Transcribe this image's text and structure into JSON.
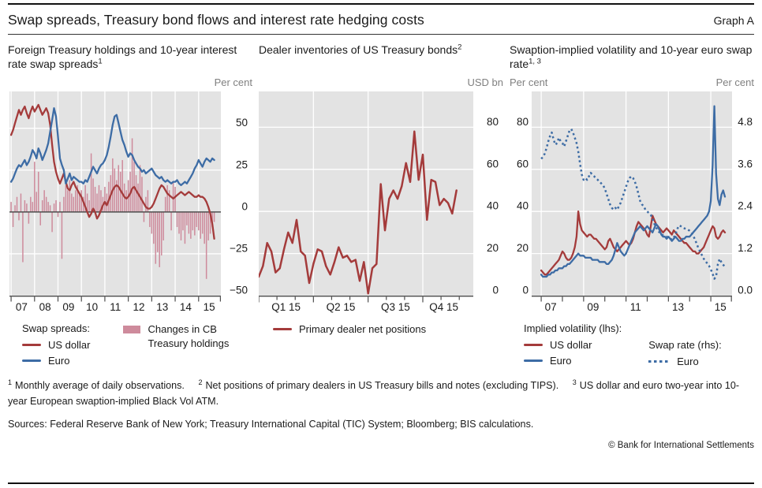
{
  "header": {
    "title": "Swap spreads, Treasury bond flows and interest rate hedging costs",
    "graph_label": "Graph A"
  },
  "colors": {
    "red": "#A43B3B",
    "blue": "#3D6CA5",
    "pink": "#CE8B9C",
    "plot_bg": "#E3E3E3",
    "grid": "#FFFFFF",
    "axis": "#4D4D4D",
    "text": "#1A1A1A",
    "muted": "#808080"
  },
  "panels": [
    {
      "title": "Foreign Treasury holdings and 10-year interest rate swap spreads",
      "title_sup": "1",
      "unit_left": "",
      "unit_right": "Per cent",
      "legend": {
        "header": "Swap spreads:",
        "items": [
          {
            "label": "US dollar"
          },
          {
            "label": "Euro"
          }
        ],
        "aside": {
          "label": "Changes in CB Treasury holdings"
        }
      }
    },
    {
      "title": "Dealer inventories of US Treasury bonds",
      "title_sup": "2",
      "unit_left": "",
      "unit_right": "USD bn",
      "legend": {
        "items": [
          {
            "label": "Primary dealer net positions"
          }
        ]
      }
    },
    {
      "title": "Swaption-implied volatility and 10-year euro swap rate",
      "title_sup": "1, 3",
      "unit_left": "Per cent",
      "unit_right": "Per cent",
      "legend": {
        "header": "Implied volatility (lhs):",
        "items": [
          {
            "label": "US dollar"
          },
          {
            "label": "Euro"
          }
        ],
        "aside_header": "Swap rate (rhs):",
        "aside": {
          "label": "Euro"
        }
      }
    }
  ],
  "chart_data": [
    {
      "type": "line+bar",
      "title": "Foreign Treasury holdings and 10-year interest rate swap spreads",
      "ylabel_right_unit": "Per cent",
      "ylim": [
        -50,
        72
      ],
      "ygrid": [
        -25,
        0,
        25,
        50
      ],
      "zero_line": 0,
      "ylabels_right": [
        {
          "v": 50,
          "t": "50"
        },
        {
          "v": 25,
          "t": "25"
        },
        {
          "v": 0,
          "t": "0"
        },
        {
          "v": -25,
          "t": "−25"
        },
        {
          "v": -50,
          "t": "−50"
        }
      ],
      "xlim": [
        2006.93,
        2015.95
      ],
      "xgrid": [
        2007,
        2008,
        2009,
        2010,
        2011,
        2012,
        2013,
        2014,
        2015
      ],
      "ticks": [
        {
          "len": 6,
          "pos": [
            2007,
            2008,
            2009,
            2010,
            2011,
            2012,
            2013,
            2014,
            2015,
            2015.93
          ]
        }
      ],
      "xlabels": [
        {
          "x": 2007.45,
          "t": "07"
        },
        {
          "x": 2008.45,
          "t": "08"
        },
        {
          "x": 2009.45,
          "t": "09"
        },
        {
          "x": 2010.45,
          "t": "10"
        },
        {
          "x": 2011.45,
          "t": "11"
        },
        {
          "x": 2012.45,
          "t": "12"
        },
        {
          "x": 2013.45,
          "t": "13"
        },
        {
          "x": 2014.45,
          "t": "14"
        },
        {
          "x": 2015.45,
          "t": "15"
        }
      ],
      "bars": {
        "name": "Changes in CB Treasury holdings",
        "color_key": "pink",
        "x0": 2007.0,
        "dx": 0.08333,
        "width": 1.5,
        "values": [
          6,
          -9,
          4,
          9,
          -5,
          11,
          -30,
          7,
          5,
          -7,
          9,
          6,
          30,
          12,
          24,
          -8,
          7,
          13,
          9,
          6,
          4,
          -12,
          5,
          7,
          -3,
          6,
          -28,
          9,
          16,
          13,
          19,
          11,
          9,
          13,
          16,
          11,
          13,
          9,
          16,
          11,
          7,
          35,
          20,
          15,
          11,
          16,
          13,
          9,
          15,
          11,
          18,
          22,
          32,
          26,
          19,
          28,
          24,
          31,
          17,
          13,
          19,
          24,
          44,
          30,
          22,
          17,
          28,
          21,
          -6,
          9,
          13,
          -9,
          -13,
          -19,
          -31,
          -24,
          -33,
          -26,
          -17,
          9,
          16,
          13,
          -11,
          18,
          15,
          -9,
          -13,
          -17,
          -11,
          -19,
          -8,
          -13,
          -16,
          -11,
          -14,
          -9,
          -11,
          -16,
          -13,
          -19,
          -40,
          -17,
          -13,
          -9,
          -6
        ]
      },
      "series": [
        {
          "name": "US dollar swap spread",
          "color_key": "red",
          "width": 2.3,
          "x0": 2007.0,
          "dx": 0.08333,
          "values": [
            46,
            49,
            53,
            57,
            61,
            58,
            61,
            63,
            59,
            56,
            60,
            63,
            60,
            62,
            64,
            61,
            58,
            60,
            62,
            59,
            52,
            40,
            30,
            24,
            20,
            17,
            20,
            23,
            18,
            14,
            13,
            16,
            18,
            15,
            13,
            11,
            9,
            6,
            3,
            0,
            -3,
            -1,
            2,
            0,
            -4,
            -2,
            1,
            4,
            6,
            4,
            7,
            10,
            13,
            15,
            16,
            15,
            13,
            11,
            9,
            8,
            9,
            11,
            14,
            15,
            13,
            11,
            9,
            7,
            5,
            3,
            2,
            2,
            3,
            5,
            8,
            11,
            14,
            16,
            15,
            13,
            11,
            10,
            9,
            8,
            9,
            10,
            11,
            12,
            11,
            10,
            11,
            12,
            11,
            10,
            9,
            9,
            10,
            9,
            9,
            8,
            6,
            3,
            -1,
            -7,
            -16
          ]
        },
        {
          "name": "Euro swap spread",
          "color_key": "blue",
          "width": 2.3,
          "x0": 2007.0,
          "dx": 0.08333,
          "values": [
            18,
            20,
            23,
            26,
            28,
            27,
            29,
            31,
            28,
            30,
            33,
            37,
            35,
            32,
            38,
            35,
            31,
            34,
            37,
            41,
            48,
            55,
            62,
            57,
            45,
            32,
            28,
            25,
            17,
            20,
            23,
            19,
            21,
            20,
            19,
            18,
            18,
            17,
            19,
            18,
            21,
            24,
            27,
            25,
            23,
            26,
            28,
            29,
            31,
            34,
            39,
            45,
            52,
            57,
            58,
            53,
            48,
            43,
            40,
            36,
            33,
            35,
            34,
            31,
            29,
            27,
            26,
            24,
            25,
            23,
            24,
            25,
            26,
            24,
            22,
            21,
            20,
            21,
            19,
            18,
            19,
            18,
            17,
            18,
            18,
            19,
            17,
            16,
            17,
            18,
            17,
            19,
            21,
            23,
            26,
            28,
            31,
            29,
            27,
            30,
            32,
            31,
            30,
            32,
            31
          ]
        }
      ]
    },
    {
      "type": "line",
      "title": "Dealer inventories of US Treasury bonds",
      "ylabel_right_unit": "USD bn",
      "ylim": [
        0,
        97
      ],
      "ygrid": [
        20,
        40,
        60,
        80
      ],
      "ylabels_right": [
        {
          "v": 80,
          "t": "80"
        },
        {
          "v": 60,
          "t": "60"
        },
        {
          "v": 40,
          "t": "40"
        },
        {
          "v": 20,
          "t": "20"
        },
        {
          "v": 0,
          "t": "0"
        }
      ],
      "xlim": [
        0,
        51
      ],
      "xgrid": [
        13,
        26,
        39
      ],
      "ticks": [
        {
          "len": 7,
          "pos": [
            0,
            13,
            26,
            39
          ]
        },
        {
          "len": 4,
          "pos": [
            4.33,
            8.67,
            17.33,
            21.67,
            30.33,
            34.67,
            43.33,
            47.67
          ]
        }
      ],
      "xlabels": [
        {
          "x": 6.5,
          "t": "Q1 15"
        },
        {
          "x": 19.5,
          "t": "Q2 15"
        },
        {
          "x": 32.5,
          "t": "Q3 15"
        },
        {
          "x": 44,
          "t": "Q4 15"
        }
      ],
      "series": [
        {
          "name": "Primary dealer net positions",
          "color_key": "red",
          "width": 2.5,
          "x0": 0,
          "dx": 1,
          "values": [
            9,
            14,
            25,
            21,
            11,
            13,
            22,
            30,
            25,
            36,
            21,
            19,
            6,
            15,
            22,
            21,
            14,
            10,
            16,
            23,
            18,
            19,
            16,
            17,
            7,
            16,
            1,
            13,
            15,
            53,
            31,
            46,
            50,
            46,
            52,
            63,
            54,
            78,
            55,
            67,
            36,
            55,
            54,
            43,
            46,
            44,
            39,
            50
          ]
        }
      ]
    },
    {
      "type": "line",
      "title": "Swaption-implied volatility and 10-year euro swap rate",
      "ylabel_left_unit": "Per cent",
      "ylabel_right_unit": "Per cent",
      "ylim": [
        0,
        97
      ],
      "ygrid": [
        20,
        40,
        60,
        80
      ],
      "ylabels_left": [
        {
          "v": 80,
          "t": "80"
        },
        {
          "v": 60,
          "t": "60"
        },
        {
          "v": 40,
          "t": "40"
        },
        {
          "v": 20,
          "t": "20"
        },
        {
          "v": 0,
          "t": "0"
        }
      ],
      "ylabels_right": [
        {
          "v": 80,
          "t": "4.8"
        },
        {
          "v": 60,
          "t": "3.6"
        },
        {
          "v": 40,
          "t": "2.4"
        },
        {
          "v": 20,
          "t": "1.2"
        },
        {
          "v": 0,
          "t": "0.0"
        }
      ],
      "rhs_per_lhs": 0.06,
      "xlim": [
        2006.55,
        2016.0
      ],
      "xgrid": [
        2007,
        2009,
        2011,
        2013,
        2015
      ],
      "ticks": [
        {
          "len": 6,
          "pos": [
            2007,
            2008,
            2009,
            2010,
            2011,
            2012,
            2013,
            2014,
            2015,
            2015.97
          ]
        }
      ],
      "xlabels": [
        {
          "x": 2007.45,
          "t": "07"
        },
        {
          "x": 2009.45,
          "t": "09"
        },
        {
          "x": 2011.45,
          "t": "11"
        },
        {
          "x": 2013.45,
          "t": "13"
        },
        {
          "x": 2015.45,
          "t": "15"
        }
      ],
      "series": [
        {
          "name": "US dollar implied volatility (lhs)",
          "color_key": "red",
          "width": 2.3,
          "x0": 2007.0,
          "dx": 0.08333,
          "values": [
            12,
            11,
            10,
            10,
            11,
            12,
            13,
            14,
            15,
            16,
            17,
            19,
            21,
            20,
            18,
            17,
            17,
            18,
            20,
            23,
            28,
            40,
            34,
            31,
            30,
            29,
            28,
            29,
            29,
            28,
            27,
            27,
            26,
            25,
            24,
            23,
            22,
            23,
            26,
            27,
            25,
            23,
            22,
            21,
            22,
            23,
            24,
            25,
            26,
            25,
            24,
            25,
            27,
            30,
            33,
            35,
            34,
            33,
            32,
            31,
            29,
            28,
            33,
            38,
            36,
            34,
            33,
            32,
            31,
            30,
            31,
            32,
            31,
            30,
            29,
            31,
            30,
            29,
            28,
            27,
            26,
            25,
            25,
            24,
            23,
            22,
            21,
            21,
            20,
            20,
            21,
            22,
            23,
            25,
            27,
            29,
            31,
            33,
            32,
            28,
            27,
            28,
            30,
            31,
            30
          ]
        },
        {
          "name": "Euro implied volatility (lhs)",
          "color_key": "blue",
          "width": 2.3,
          "x0": 2007.0,
          "dx": 0.08333,
          "values": [
            10,
            9,
            9,
            9,
            10,
            10,
            11,
            11,
            12,
            12,
            13,
            13,
            13,
            14,
            14,
            15,
            15,
            16,
            17,
            18,
            19,
            20,
            19,
            19,
            19,
            18,
            18,
            18,
            18,
            17,
            17,
            17,
            17,
            16,
            16,
            16,
            16,
            15,
            15,
            16,
            17,
            19,
            22,
            25,
            23,
            21,
            20,
            19,
            20,
            22,
            24,
            26,
            28,
            30,
            31,
            32,
            33,
            32,
            31,
            32,
            33,
            32,
            31,
            30,
            32,
            34,
            33,
            31,
            29,
            28,
            28,
            27,
            28,
            27,
            26,
            27,
            28,
            27,
            26,
            26,
            27,
            27,
            28,
            28,
            28,
            29,
            30,
            31,
            32,
            33,
            34,
            35,
            36,
            37,
            38,
            40,
            45,
            62,
            90,
            58,
            46,
            43,
            48,
            50,
            47
          ]
        },
        {
          "name": "Euro swap rate (rhs)",
          "color_key": "blue",
          "width": 2.5,
          "dash": "2.5 3.4",
          "scale": 16.6667,
          "x0": 2007.0,
          "dx": 0.08333,
          "values": [
            3.9,
            3.95,
            4.05,
            4.2,
            4.4,
            4.55,
            4.65,
            4.45,
            4.3,
            4.35,
            4.5,
            4.4,
            4.35,
            4.25,
            4.4,
            4.55,
            4.7,
            4.75,
            4.65,
            4.5,
            4.35,
            4.1,
            3.75,
            3.45,
            3.3,
            3.35,
            3.3,
            3.4,
            3.5,
            3.45,
            3.4,
            3.35,
            3.3,
            3.25,
            3.2,
            3.15,
            3.05,
            2.9,
            2.75,
            2.6,
            2.5,
            2.45,
            2.5,
            2.45,
            2.55,
            2.65,
            2.8,
            2.95,
            3.1,
            3.25,
            3.35,
            3.4,
            3.35,
            3.25,
            3.1,
            2.9,
            2.7,
            2.6,
            2.55,
            2.45,
            2.4,
            2.35,
            2.3,
            2.2,
            2.05,
            1.95,
            1.85,
            1.8,
            1.75,
            1.72,
            1.7,
            1.68,
            1.65,
            1.62,
            1.6,
            1.65,
            1.75,
            1.9,
            2.0,
            1.98,
            1.95,
            1.92,
            1.9,
            1.88,
            1.85,
            1.8,
            1.72,
            1.6,
            1.48,
            1.35,
            1.25,
            1.15,
            1.05,
            0.98,
            0.92,
            0.85,
            0.75,
            0.62,
            0.48,
            0.55,
            0.9,
            1.05,
            0.95,
            0.88,
            0.82
          ]
        }
      ]
    }
  ],
  "footnotes": [
    {
      "sup": "1",
      "text": "Monthly average of daily observations."
    },
    {
      "sup": "2",
      "text": "Net positions of primary dealers in US Treasury bills and notes (excluding TIPS)."
    },
    {
      "sup": "3",
      "text": "US dollar and euro two-year into 10-year European swaption-implied Black Vol ATM."
    }
  ],
  "sources": "Sources: Federal Reserve Bank of New York; Treasury International Capital (TIC) System; Bloomberg; BIS calculations.",
  "copyright": "© Bank for International Settlements"
}
